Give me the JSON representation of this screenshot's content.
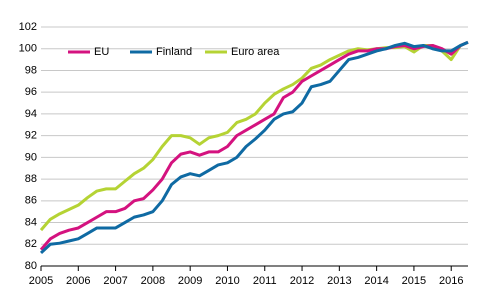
{
  "chart_data": {
    "type": "line",
    "x": [
      2005,
      2005.25,
      2005.5,
      2005.75,
      2006,
      2006.25,
      2006.5,
      2006.75,
      2007,
      2007.25,
      2007.5,
      2007.75,
      2008,
      2008.25,
      2008.5,
      2008.75,
      2009,
      2009.25,
      2009.5,
      2009.75,
      2010,
      2010.25,
      2010.5,
      2010.75,
      2011,
      2011.25,
      2011.5,
      2011.75,
      2012,
      2012.25,
      2012.5,
      2012.75,
      2013,
      2013.25,
      2013.5,
      2013.75,
      2014,
      2014.25,
      2014.5,
      2014.75,
      2015,
      2015.25,
      2015.5,
      2015.75,
      2016,
      2016.25,
      2016.45
    ],
    "series": [
      {
        "name": "EU",
        "color": "#d4127f",
        "values": [
          81.5,
          82.5,
          83,
          83.3,
          83.5,
          84,
          84.5,
          85,
          85,
          85.3,
          86,
          86.2,
          87,
          88,
          89.5,
          90.3,
          90.5,
          90.2,
          90.5,
          90.5,
          91,
          92,
          92.5,
          93,
          93.5,
          94,
          95.5,
          96,
          97,
          97.5,
          98,
          98.5,
          99,
          99.5,
          99.8,
          99.8,
          100,
          100,
          100.2,
          100.3,
          100,
          100.2,
          100.3,
          100,
          99.5,
          100.3,
          100.6
        ]
      },
      {
        "name": "Finland",
        "color": "#0f6aa3",
        "values": [
          81.2,
          82,
          82.1,
          82.3,
          82.5,
          83,
          83.5,
          83.5,
          83.5,
          84,
          84.5,
          84.7,
          85,
          86,
          87.5,
          88.2,
          88.5,
          88.3,
          88.8,
          89.3,
          89.5,
          90,
          91,
          91.7,
          92.5,
          93.5,
          94,
          94.2,
          95,
          96.5,
          96.7,
          97,
          98,
          99,
          99.2,
          99.5,
          99.8,
          100,
          100.3,
          100.5,
          100.2,
          100.3,
          100,
          99.8,
          99.8,
          100.3,
          100.6
        ]
      },
      {
        "name": "Euro area",
        "color": "#b5d334",
        "values": [
          83.3,
          84.3,
          84.8,
          85.2,
          85.6,
          86.3,
          86.9,
          87.1,
          87.1,
          87.8,
          88.5,
          89,
          89.8,
          91,
          92,
          92,
          91.8,
          91.2,
          91.8,
          92,
          92.3,
          93.2,
          93.5,
          94,
          95,
          95.8,
          96.3,
          96.7,
          97.3,
          98.2,
          98.5,
          99,
          99.4,
          99.8,
          100,
          99.9,
          100,
          100.1,
          100.1,
          100.2,
          99.7,
          100.3,
          100.3,
          99.8,
          99,
          100.3,
          100.6
        ]
      }
    ],
    "xlim": [
      2005,
      2016.45
    ],
    "xticks": [
      2005,
      2006,
      2007,
      2008,
      2009,
      2010,
      2011,
      2012,
      2013,
      2014,
      2015,
      2016
    ],
    "ylim": [
      80,
      102
    ],
    "yticks": [
      80,
      82,
      84,
      86,
      88,
      90,
      92,
      94,
      96,
      98,
      100,
      102
    ],
    "grid": true,
    "legend": "top-left"
  }
}
